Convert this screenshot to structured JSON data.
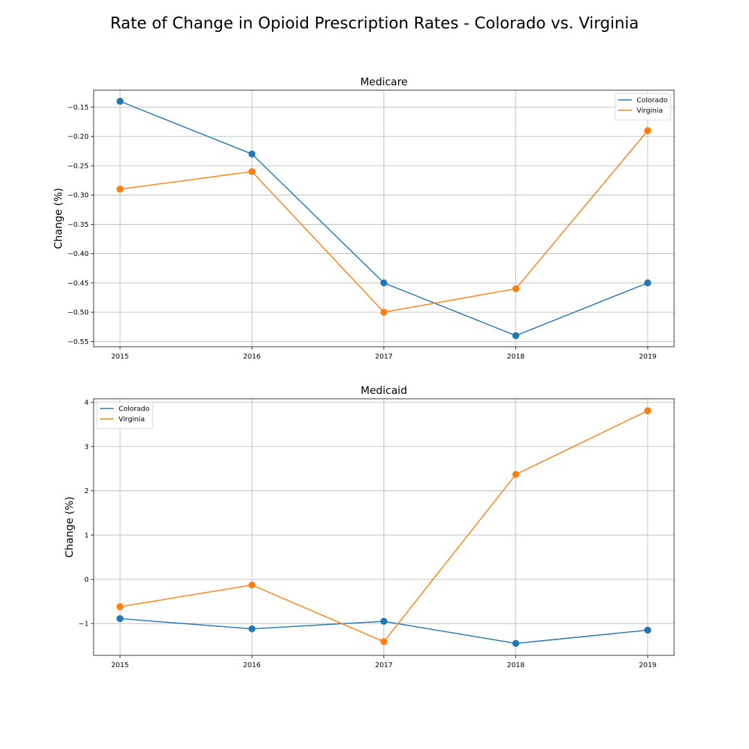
{
  "figure": {
    "title": "Rate of Change in Opioid Prescription Rates - Colorado vs. Virginia"
  },
  "colors": {
    "Colorado": "#1f77b4",
    "Virginia": "#ff7f0e"
  },
  "chart_data": [
    {
      "type": "line",
      "title": "Medicare",
      "xlabel": "",
      "ylabel": "Change (%)",
      "x": [
        2015,
        2016,
        2017,
        2018,
        2019
      ],
      "xticks": [
        "2015",
        "2016",
        "2017",
        "2018",
        "2019"
      ],
      "yticks": [
        -0.55,
        -0.5,
        -0.45,
        -0.4,
        -0.35,
        -0.3,
        -0.25,
        -0.2,
        -0.15
      ],
      "ytick_labels": [
        "−0.55",
        "−0.50",
        "−0.45",
        "−0.40",
        "−0.35",
        "−0.30",
        "−0.25",
        "−0.20",
        "−0.15"
      ],
      "ylim": [
        -0.559,
        -0.121
      ],
      "xlim": [
        2014.8,
        2019.2
      ],
      "grid": true,
      "legend": "upper-right",
      "series": [
        {
          "name": "Colorado",
          "values": [
            -0.14,
            -0.23,
            -0.45,
            -0.54,
            -0.45
          ]
        },
        {
          "name": "Virginia",
          "values": [
            -0.29,
            -0.26,
            -0.5,
            -0.46,
            -0.19
          ]
        }
      ]
    },
    {
      "type": "line",
      "title": "Medicaid",
      "xlabel": "",
      "ylabel": "Change (%)",
      "x": [
        2015,
        2016,
        2017,
        2018,
        2019
      ],
      "xticks": [
        "2015",
        "2016",
        "2017",
        "2018",
        "2019"
      ],
      "yticks": [
        -1,
        0,
        1,
        2,
        3,
        4
      ],
      "ytick_labels": [
        "−1",
        "0",
        "1",
        "2",
        "3",
        "4"
      ],
      "ylim": [
        -1.72,
        4.08
      ],
      "xlim": [
        2014.8,
        2019.2
      ],
      "grid": true,
      "legend": "upper-left",
      "series": [
        {
          "name": "Colorado",
          "values": [
            -0.89,
            -1.12,
            -0.95,
            -1.45,
            -1.15
          ]
        },
        {
          "name": "Virginia",
          "values": [
            -0.62,
            -0.13,
            -1.41,
            2.37,
            3.81
          ]
        }
      ]
    }
  ]
}
